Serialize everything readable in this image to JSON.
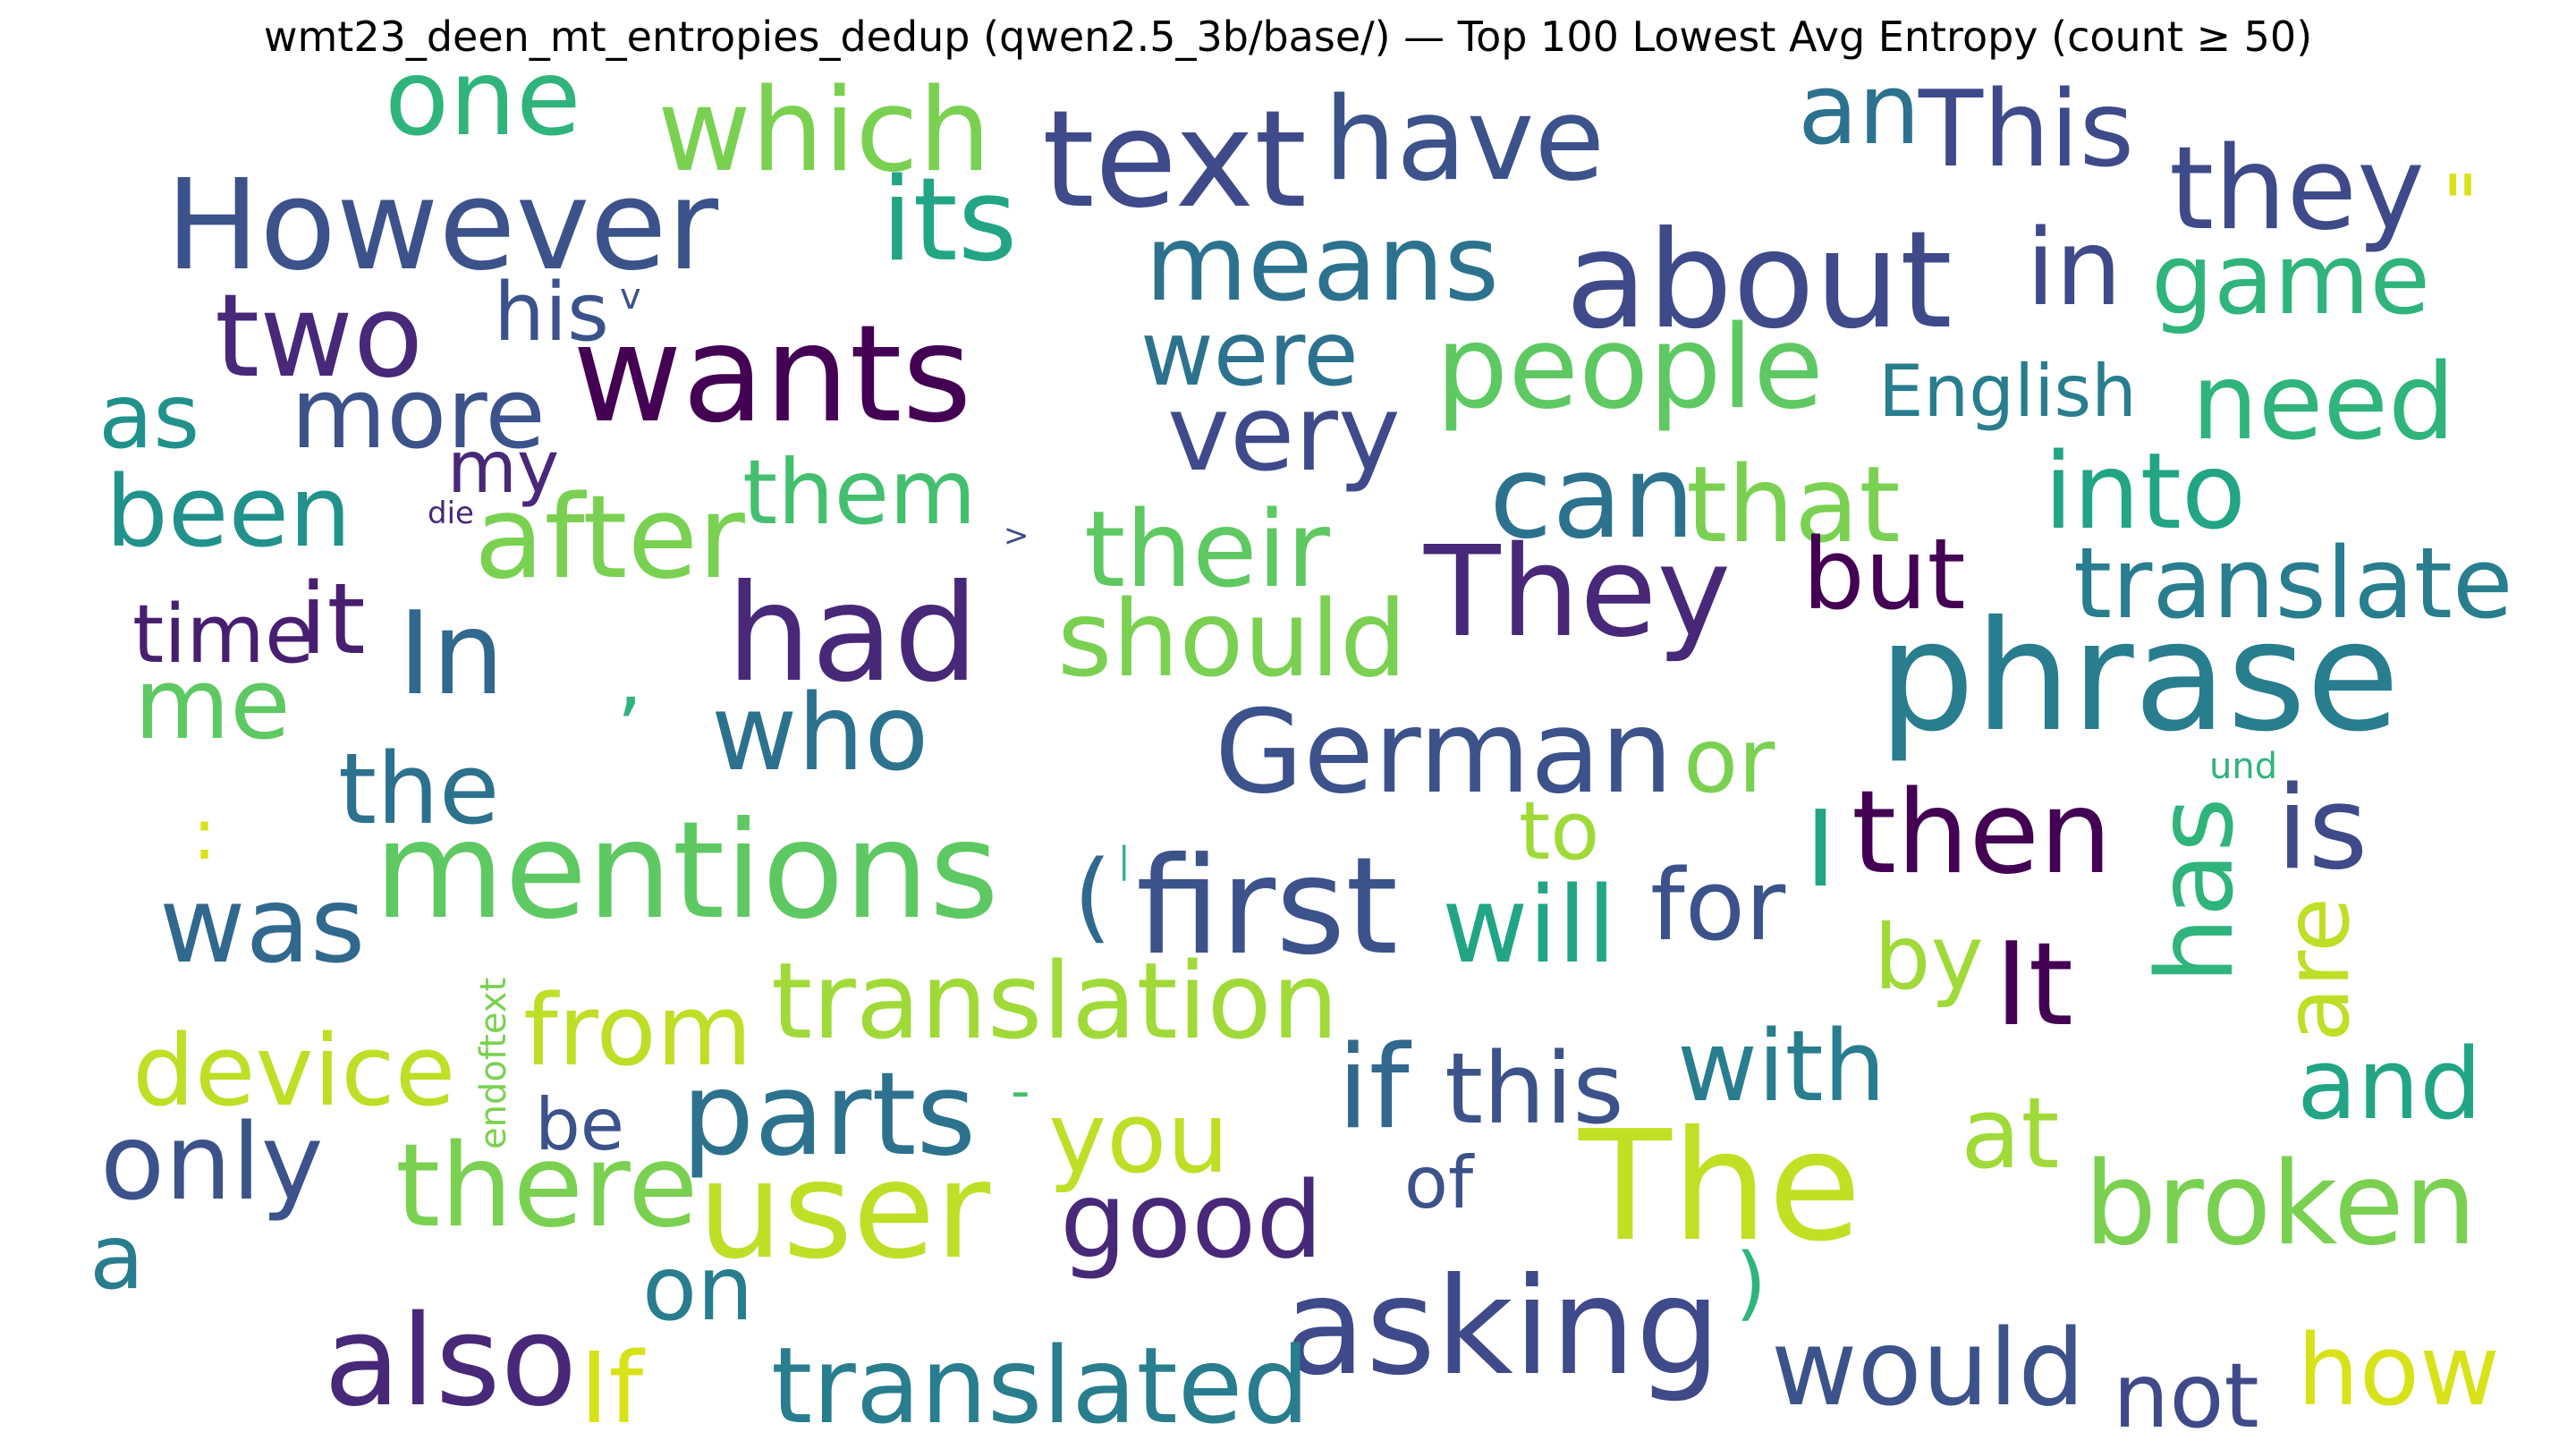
{
  "chart_data": {
    "type": "wordcloud",
    "title": "wmt23_deen_mt_entropies_dedup (qwen2.5_3b/base/) — Top 100 Lowest Avg Entropy (count ≥ 50)",
    "colormap": "viridis",
    "words": [
      {
        "text": "one",
        "rank": 2,
        "color": "#2fb47c"
      },
      {
        "text": "which",
        "rank": 3,
        "color": "#7ad151"
      },
      {
        "text": "text",
        "rank": 1,
        "color": "#3e4a89"
      },
      {
        "text": "have",
        "rank": 3,
        "color": "#3b528b"
      },
      {
        "text": "an",
        "rank": 2,
        "color": "#2c728e"
      },
      {
        "text": "This",
        "rank": 2,
        "color": "#3e4a89"
      },
      {
        "text": "However",
        "rank": 1,
        "color": "#3b528b"
      },
      {
        "text": "its",
        "rank": 2,
        "color": "#21a585"
      },
      {
        "text": "they",
        "rank": 2,
        "color": "#3e4a89"
      },
      {
        "text": "\"",
        "rank": 3,
        "color": "#d8e219"
      },
      {
        "text": "means",
        "rank": 2,
        "color": "#2c728e"
      },
      {
        "text": "about",
        "rank": 1,
        "color": "#3e4a89"
      },
      {
        "text": "in",
        "rank": 2,
        "color": "#3e4a89"
      },
      {
        "text": "game",
        "rank": 2,
        "color": "#2fb47c"
      },
      {
        "text": "two",
        "rank": 2,
        "color": "#482878"
      },
      {
        "text": "his",
        "rank": 3,
        "color": "#3b528b"
      },
      {
        "text": "v",
        "rank": 5,
        "color": "#3b528b"
      },
      {
        "text": "wants",
        "rank": 1,
        "color": "#440154"
      },
      {
        "text": "were",
        "rank": 3,
        "color": "#2c728e"
      },
      {
        "text": "people",
        "rank": 2,
        "color": "#5ec962"
      },
      {
        "text": "English",
        "rank": 3,
        "color": "#287d8e"
      },
      {
        "text": "need",
        "rank": 2,
        "color": "#2fb47c"
      },
      {
        "text": "as",
        "rank": 3,
        "color": "#21918c"
      },
      {
        "text": "more",
        "rank": 2,
        "color": "#3b528b"
      },
      {
        "text": "very",
        "rank": 2,
        "color": "#3e4a89"
      },
      {
        "text": "my",
        "rank": 3,
        "color": "#482878"
      },
      {
        "text": "can",
        "rank": 2,
        "color": "#2c728e"
      },
      {
        "text": "that",
        "rank": 2,
        "color": "#7ad151"
      },
      {
        "text": "into",
        "rank": 2,
        "color": "#21a585"
      },
      {
        "text": "been",
        "rank": 2,
        "color": "#21918c"
      },
      {
        "text": "die",
        "rank": 5,
        "color": "#482878"
      },
      {
        "text": "after",
        "rank": 2,
        "color": "#7ad151"
      },
      {
        "text": "them",
        "rank": 3,
        "color": "#44bf70"
      },
      {
        "text": ">",
        "rank": 5,
        "color": "#3e4a89"
      },
      {
        "text": "their",
        "rank": 2,
        "color": "#5ec962"
      },
      {
        "text": "They",
        "rank": 1,
        "color": "#482878"
      },
      {
        "text": "but",
        "rank": 3,
        "color": "#440154"
      },
      {
        "text": "translate",
        "rank": 2,
        "color": "#287d8e"
      },
      {
        "text": "time",
        "rank": 3,
        "color": "#481f70"
      },
      {
        "text": "it",
        "rank": 3,
        "color": "#481f70"
      },
      {
        "text": "In",
        "rank": 2,
        "color": "#31688e"
      },
      {
        "text": "had",
        "rank": 1,
        "color": "#482878"
      },
      {
        "text": "should",
        "rank": 2,
        "color": "#7ad151"
      },
      {
        "text": "phrase",
        "rank": 1,
        "color": "#287d8e"
      },
      {
        "text": "me",
        "rank": 3,
        "color": "#5ec962"
      },
      {
        "text": ",",
        "rank": 4,
        "color": "#2fb47c"
      },
      {
        "text": "who",
        "rank": 2,
        "color": "#2c728e"
      },
      {
        "text": "German",
        "rank": 2,
        "color": "#3b528b"
      },
      {
        "text": "or",
        "rank": 3,
        "color": "#7ad151"
      },
      {
        "text": "und",
        "rank": 5,
        "color": "#2fb47c"
      },
      {
        "text": "the",
        "rank": 3,
        "color": "#2c728e"
      },
      {
        "text": ":",
        "rank": 4,
        "color": "#d8e219"
      },
      {
        "text": "mentions",
        "rank": 1,
        "color": "#5ec962"
      },
      {
        "text": "(",
        "rank": 3,
        "color": "#31688e"
      },
      {
        "text": "|",
        "rank": 5,
        "color": "#2fb47c"
      },
      {
        "text": "first",
        "rank": 1,
        "color": "#3b528b"
      },
      {
        "text": "to",
        "rank": 3,
        "color": "#a0da39"
      },
      {
        "text": "then",
        "rank": 2,
        "color": "#440154"
      },
      {
        "text": "I",
        "rank": 2,
        "color": "#21a585"
      },
      {
        "text": "is",
        "rank": 2,
        "color": "#3e4a89"
      },
      {
        "text": "has",
        "rank": 2,
        "color": "#2fb47c"
      },
      {
        "text": "was",
        "rank": 2,
        "color": "#31688e"
      },
      {
        "text": "will",
        "rank": 2,
        "color": "#21a585"
      },
      {
        "text": "for",
        "rank": 3,
        "color": "#3b528b"
      },
      {
        "text": "are",
        "rank": 2,
        "color": "#bddf26"
      },
      {
        "text": "by",
        "rank": 3,
        "color": "#a0da39"
      },
      {
        "text": "It",
        "rank": 2,
        "color": "#440154"
      },
      {
        "text": "translation",
        "rank": 2,
        "color": "#a0da39"
      },
      {
        "text": "endoftext",
        "rank": 5,
        "color": "#7ad151"
      },
      {
        "text": "from",
        "rank": 2,
        "color": "#bddf26"
      },
      {
        "text": "device",
        "rank": 2,
        "color": "#bddf26"
      },
      {
        "text": "with",
        "rank": 2,
        "color": "#287d8e"
      },
      {
        "text": "if",
        "rank": 2,
        "color": "#31688e"
      },
      {
        "text": "this",
        "rank": 2,
        "color": "#3b528b"
      },
      {
        "text": "and",
        "rank": 2,
        "color": "#21a585"
      },
      {
        "text": "be",
        "rank": 3,
        "color": "#3b528b"
      },
      {
        "text": "parts",
        "rank": 2,
        "color": "#2c728e"
      },
      {
        "text": "-",
        "rank": 4,
        "color": "#44bf70"
      },
      {
        "text": "you",
        "rank": 2,
        "color": "#bddf26"
      },
      {
        "text": "at",
        "rank": 2,
        "color": "#a0da39"
      },
      {
        "text": "The",
        "rank": 1,
        "color": "#c2df23"
      },
      {
        "text": "only",
        "rank": 2,
        "color": "#3b528b"
      },
      {
        "text": "there",
        "rank": 2,
        "color": "#7ad151"
      },
      {
        "text": "user",
        "rank": 1,
        "color": "#bddf26"
      },
      {
        "text": "of",
        "rank": 3,
        "color": "#3b528b"
      },
      {
        "text": "broken",
        "rank": 2,
        "color": "#7ad151"
      },
      {
        "text": "good",
        "rank": 2,
        "color": "#482878"
      },
      {
        "text": "a",
        "rank": 3,
        "color": "#287d8e"
      },
      {
        "text": "on",
        "rank": 3,
        "color": "#287d8e"
      },
      {
        "text": ")",
        "rank": 4,
        "color": "#2fb47c"
      },
      {
        "text": "asking",
        "rank": 1,
        "color": "#3e4a89"
      },
      {
        "text": "also",
        "rank": 1,
        "color": "#482878"
      },
      {
        "text": "If",
        "rank": 2,
        "color": "#d8e219"
      },
      {
        "text": "translated",
        "rank": 2,
        "color": "#287d8e"
      },
      {
        "text": "would",
        "rank": 2,
        "color": "#3b528b"
      },
      {
        "text": "not",
        "rank": 2,
        "color": "#3e4a89"
      },
      {
        "text": "how",
        "rank": 2,
        "color": "#d8e219"
      }
    ]
  }
}
